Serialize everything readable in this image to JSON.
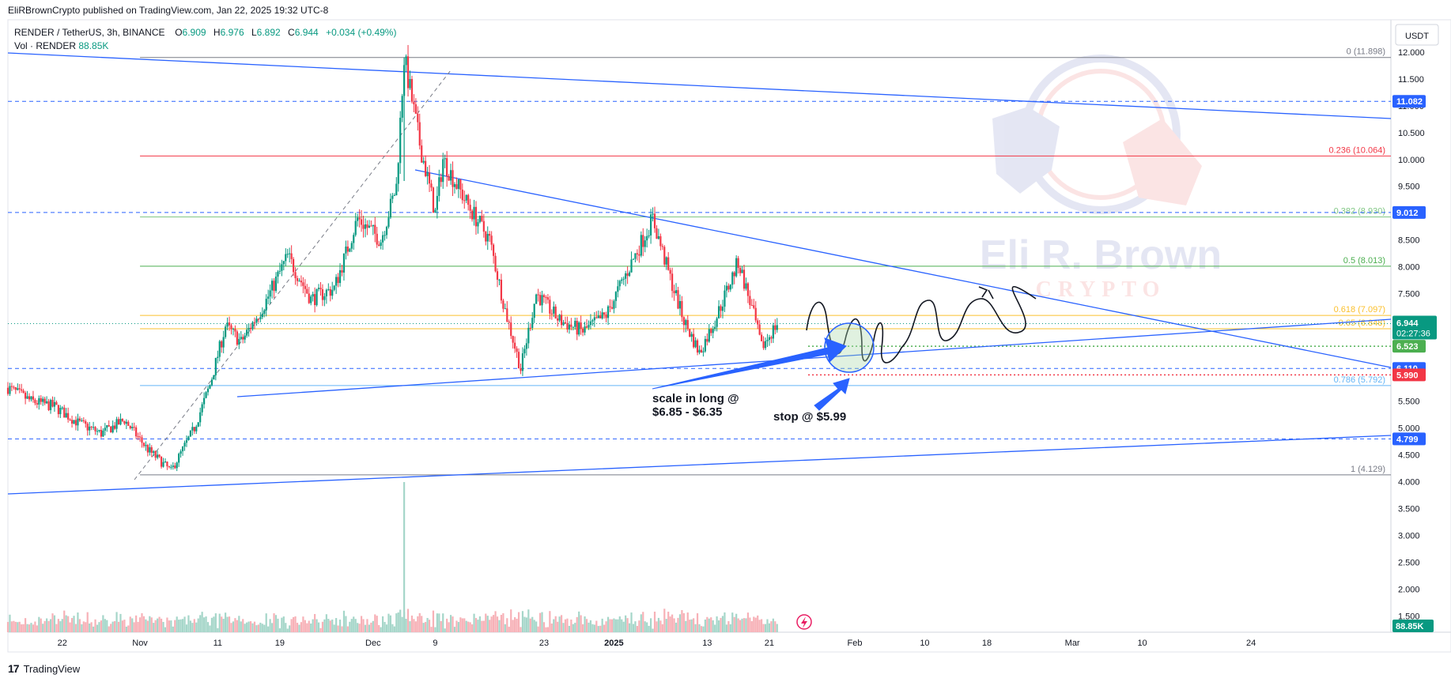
{
  "header": {
    "published": "EliRBrownCrypto published on TradingView.com, Jan 22, 2025 19:32 UTC-8"
  },
  "legend": {
    "symbol": "RENDER / TetherUS, 3h, BINANCE",
    "open_label": "O",
    "open": "6.909",
    "high_label": "H",
    "high": "6.976",
    "low_label": "L",
    "low": "6.892",
    "close_label": "C",
    "close": "6.944",
    "change": "+0.034 (+0.49%)",
    "vol_label": "Vol · RENDER",
    "vol_value": "88.85K"
  },
  "currency": "USDT",
  "watermark": {
    "line1": "Eli R. Brown",
    "line2": "CRYPTO"
  },
  "footer": {
    "brand": "TradingView"
  },
  "annotations": {
    "scale_in_1": "scale in long @",
    "scale_in_2": "$6.85 - $6.35",
    "stop": "stop @ $5.99"
  },
  "chart_data": {
    "type": "candlestick",
    "symbol": "RENDER / TetherUS",
    "interval": "3h",
    "exchange": "BINANCE",
    "ylim": [
      1.2,
      12.6
    ],
    "y_ticks": [
      1.5,
      2.0,
      2.5,
      3.0,
      3.5,
      4.0,
      4.5,
      5.0,
      5.5,
      6.0,
      6.5,
      7.0,
      7.5,
      8.0,
      8.5,
      9.0,
      9.5,
      10.0,
      10.5,
      11.0,
      11.5,
      12.0
    ],
    "y_tick_labels": [
      "1.500",
      "2.000",
      "2.500",
      "3.000",
      "3.500",
      "4.000",
      "4.500",
      "5.000",
      "5.500",
      "6.000",
      "6.500",
      "7.000",
      "7.500",
      "8.000",
      "8.500",
      "9.000",
      "9.500",
      "10.000",
      "10.500",
      "11.000",
      "11.500",
      "12.000"
    ],
    "x_tick_labels": [
      "22",
      "Nov",
      "11",
      "19",
      "Dec",
      "9",
      "23",
      "2025",
      "13",
      "21",
      "Feb",
      "10",
      "18",
      "Mar",
      "10",
      "24"
    ],
    "x_tick_dates": [
      "2024-10-22",
      "2024-11-01",
      "2024-11-11",
      "2024-11-19",
      "2024-12-01",
      "2024-12-09",
      "2024-12-23",
      "2025-01-01",
      "2025-01-13",
      "2025-01-21",
      "2025-02-01",
      "2025-02-10",
      "2025-02-18",
      "2025-03-01",
      "2025-03-10",
      "2025-03-24"
    ],
    "price_path": [
      [
        "2024-10-15",
        5.75
      ],
      [
        "2024-10-18",
        5.5
      ],
      [
        "2024-10-21",
        5.4
      ],
      [
        "2024-10-24",
        5.1
      ],
      [
        "2024-10-27",
        4.9
      ],
      [
        "2024-10-30",
        5.15
      ],
      [
        "2024-11-02",
        4.6
      ],
      [
        "2024-11-05",
        4.2
      ],
      [
        "2024-11-08",
        5.0
      ],
      [
        "2024-11-10",
        5.8
      ],
      [
        "2024-11-12",
        6.9
      ],
      [
        "2024-11-14",
        6.6
      ],
      [
        "2024-11-17",
        7.3
      ],
      [
        "2024-11-20",
        8.2
      ],
      [
        "2024-11-23",
        7.4
      ],
      [
        "2024-11-26",
        7.6
      ],
      [
        "2024-11-29",
        8.9
      ],
      [
        "2024-12-02",
        8.5
      ],
      [
        "2024-12-04",
        9.5
      ],
      [
        "2024-12-05",
        11.898
      ],
      [
        "2024-12-07",
        10.3
      ],
      [
        "2024-12-09",
        9.0
      ],
      [
        "2024-12-10",
        10.0
      ],
      [
        "2024-12-13",
        9.2
      ],
      [
        "2024-12-16",
        8.5
      ],
      [
        "2024-12-18",
        7.2
      ],
      [
        "2024-12-20",
        6.1
      ],
      [
        "2024-12-22",
        7.5
      ],
      [
        "2024-12-25",
        7.0
      ],
      [
        "2024-12-28",
        6.8
      ],
      [
        "2024-12-31",
        7.1
      ],
      [
        "2025-01-03",
        8.0
      ],
      [
        "2025-01-06",
        8.9
      ],
      [
        "2025-01-08",
        7.9
      ],
      [
        "2025-01-10",
        7.0
      ],
      [
        "2025-01-12",
        6.4
      ],
      [
        "2025-01-14",
        7.0
      ],
      [
        "2025-01-17",
        8.1
      ],
      [
        "2025-01-19",
        7.1
      ],
      [
        "2025-01-20",
        6.5
      ],
      [
        "2025-01-22",
        6.944
      ]
    ],
    "last_price": 6.944,
    "countdown": "02:27:36",
    "fibonacci": [
      {
        "label": "0 (11.898)",
        "value": 11.898,
        "color": "#787b86"
      },
      {
        "label": "0.236 (10.064)",
        "value": 10.064,
        "color": "#f23645"
      },
      {
        "label": "0.382 (8.930)",
        "value": 8.93,
        "color": "#81c784"
      },
      {
        "label": "0.5 (8.013)",
        "value": 8.013,
        "color": "#4caf50"
      },
      {
        "label": "0.618 (7.097)",
        "value": 7.097,
        "color": "#fbc02d"
      },
      {
        "label": "0.65 (6.848)",
        "value": 6.848,
        "color": "#fbc02d"
      },
      {
        "label": "0.786 (5.792)",
        "value": 5.792,
        "color": "#64b5f6"
      },
      {
        "label": "1 (4.129)",
        "value": 4.129,
        "color": "#787b86"
      }
    ],
    "horizontal_levels": [
      {
        "label": "11.082",
        "value": 11.082,
        "color": "#2962ff"
      },
      {
        "label": "9.012",
        "value": 9.012,
        "color": "#2962ff"
      },
      {
        "label": "6.523",
        "value": 6.523,
        "color": "#4caf50"
      },
      {
        "label": "6.110",
        "value": 6.11,
        "color": "#2962ff"
      },
      {
        "label": "5.990",
        "value": 5.99,
        "color": "#f23645"
      },
      {
        "label": "4.799",
        "value": 4.799,
        "color": "#2962ff"
      }
    ],
    "volume_label": "88.85K",
    "volume_color": "#089981"
  }
}
